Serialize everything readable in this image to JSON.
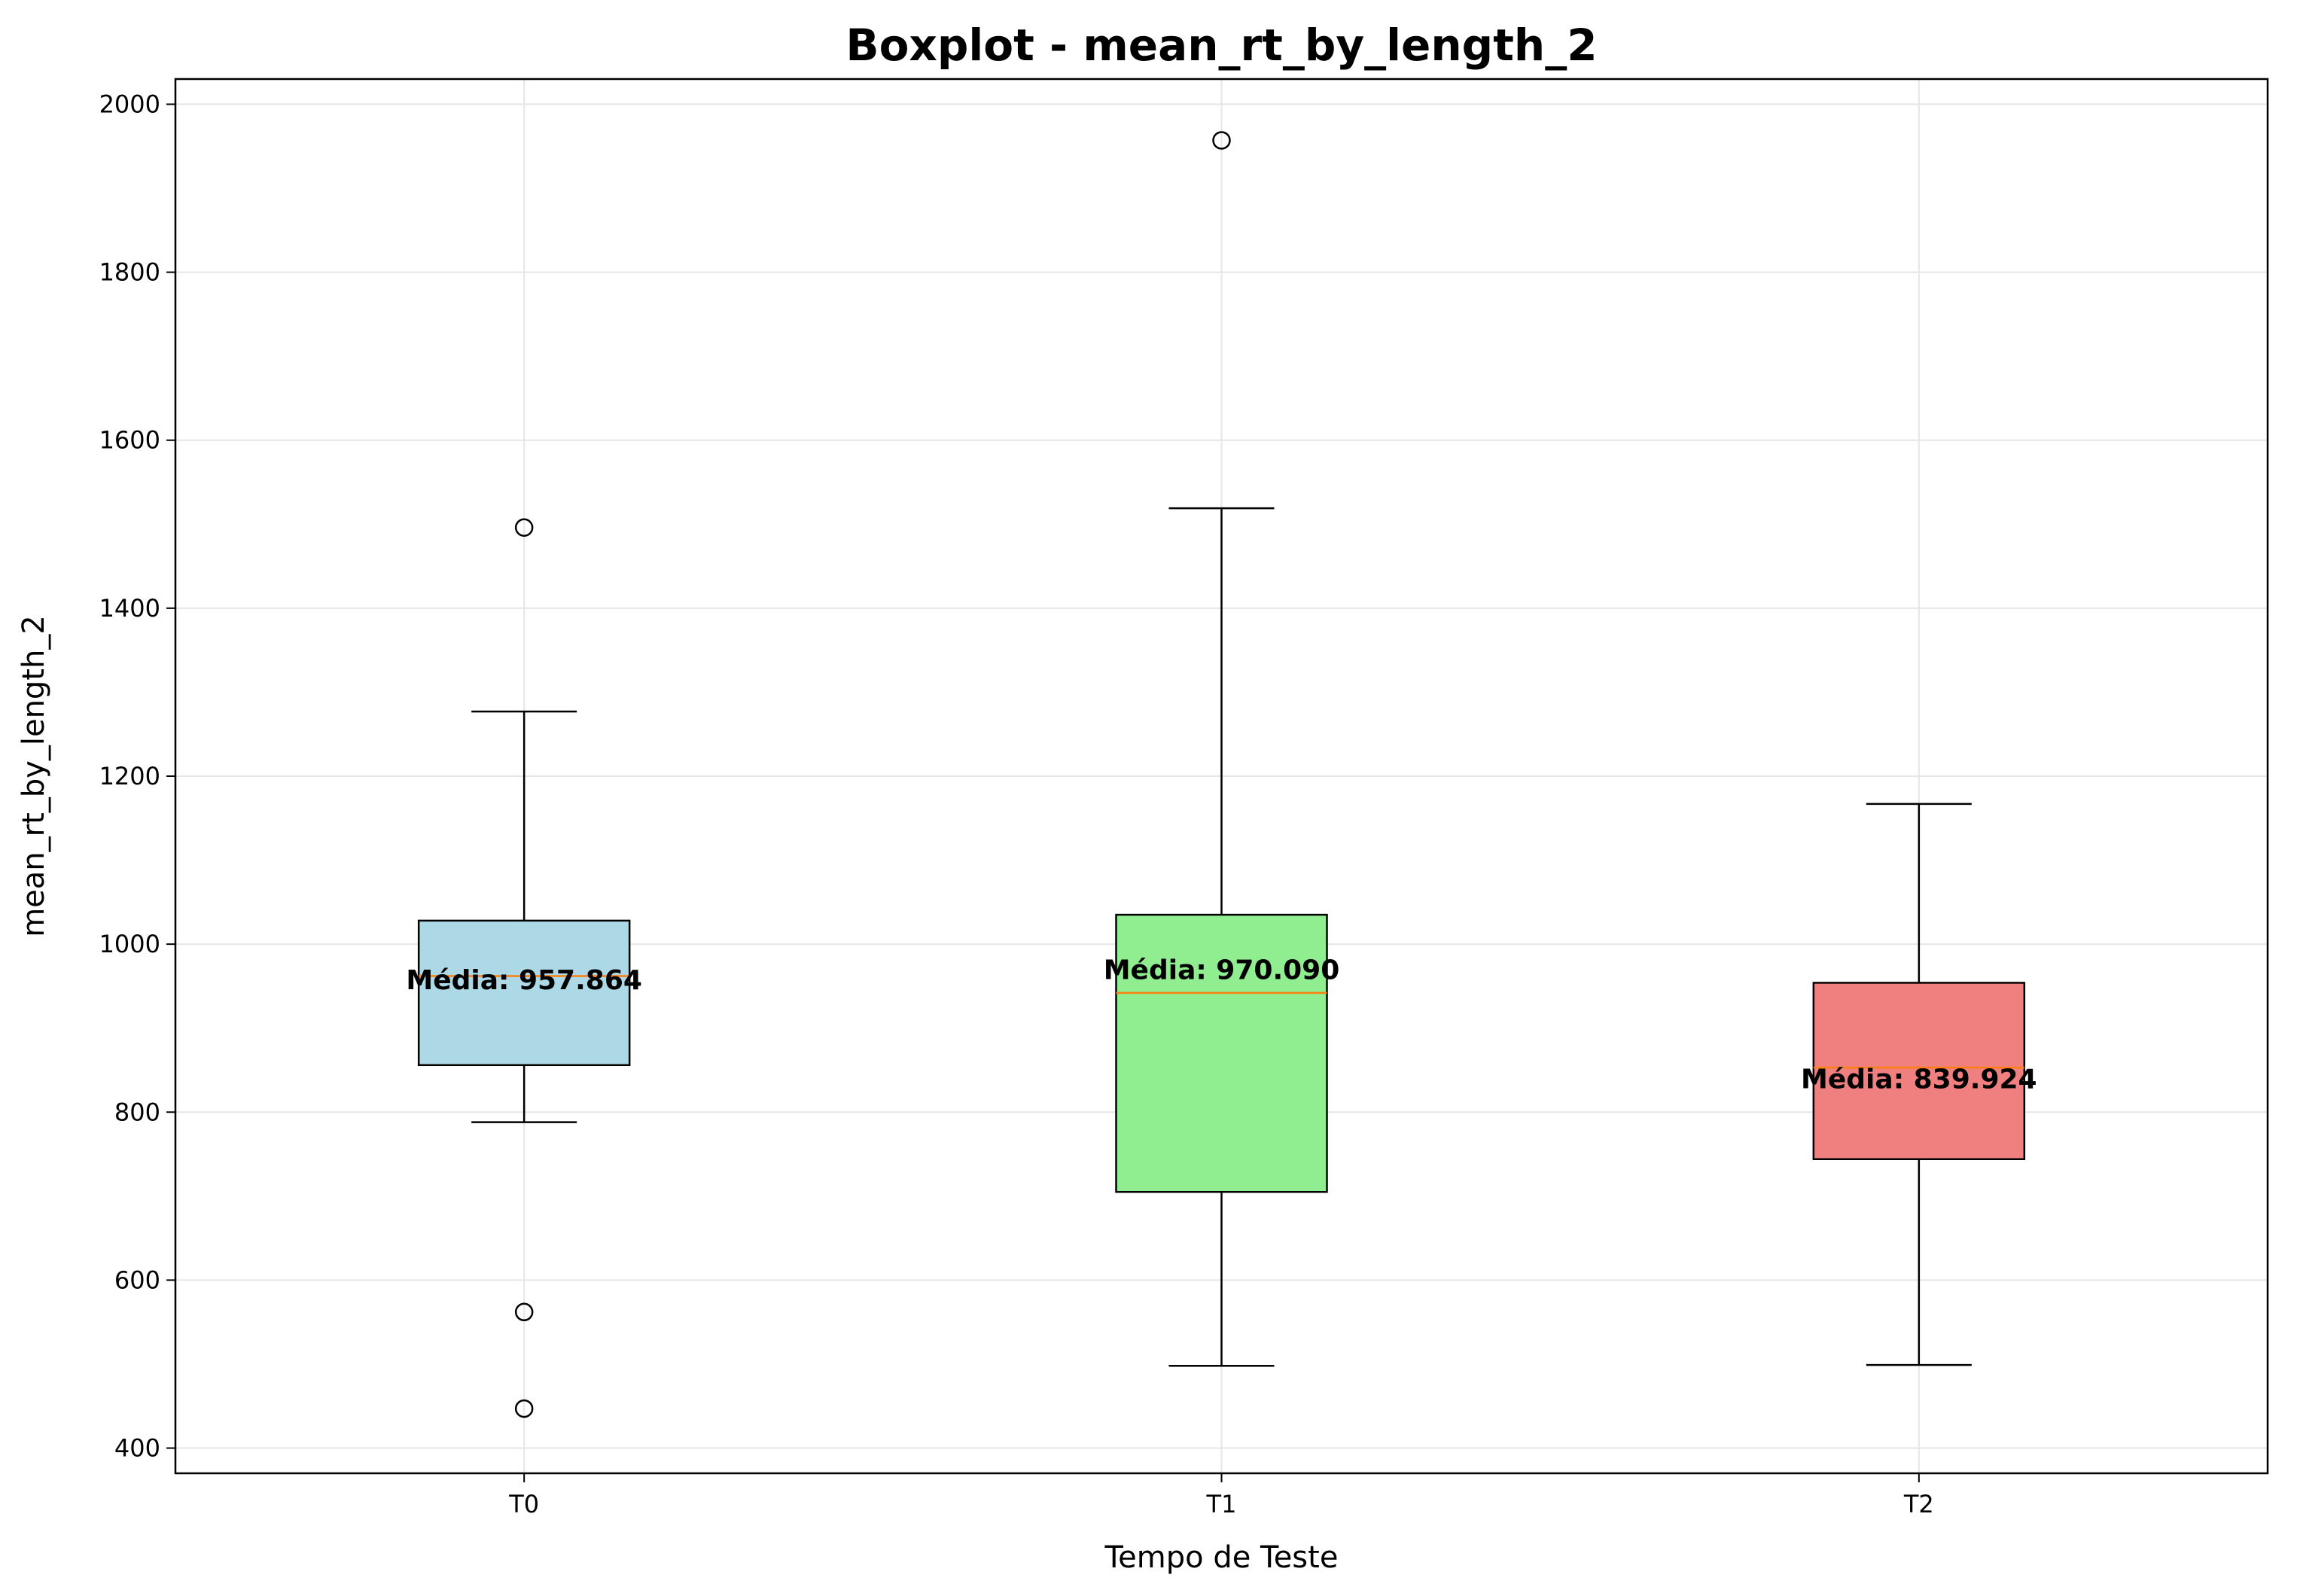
{
  "chart_data": {
    "type": "boxplot",
    "title": "Boxplot - mean_rt_by_length_2",
    "xlabel": "Tempo de Teste",
    "ylabel": "mean_rt_by_length_2",
    "ylim": [
      370,
      2030
    ],
    "yticks": [
      400,
      600,
      800,
      1000,
      1200,
      1400,
      1600,
      1800,
      2000
    ],
    "grid": true,
    "categories": [
      "T0",
      "T1",
      "T2"
    ],
    "boxes": [
      {
        "label": "T0",
        "color": "#add8e6",
        "whisker_low": 788,
        "q1": 856,
        "median": 962,
        "q3": 1028,
        "whisker_high": 1277,
        "mean": 957.864,
        "mean_label": "Média: 957.864",
        "outliers": [
          1496,
          562,
          447
        ]
      },
      {
        "label": "T1",
        "color": "#90ee90",
        "whisker_low": 498,
        "q1": 705,
        "median": 942,
        "q3": 1035,
        "whisker_high": 1519,
        "mean": 970.09,
        "mean_label": "Média: 970.090",
        "outliers": [
          1957
        ]
      },
      {
        "label": "T2",
        "color": "#f08080",
        "whisker_low": 499,
        "q1": 744,
        "median": 853,
        "q3": 954,
        "whisker_high": 1167,
        "mean": 839.924,
        "mean_label": "Média: 839.924",
        "outliers": []
      }
    ],
    "median_color": "#ff7f0e",
    "grid_color": "#e6e6e6"
  }
}
